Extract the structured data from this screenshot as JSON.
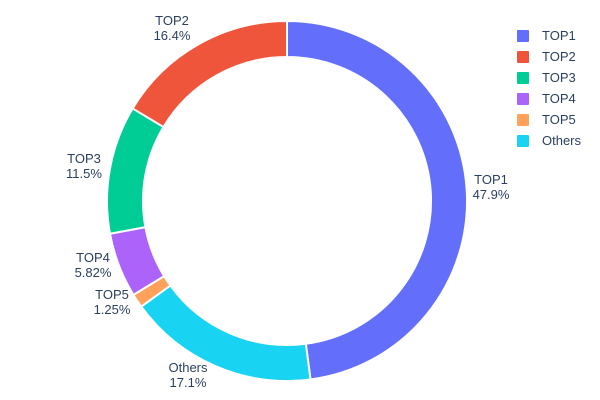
{
  "chart_data": {
    "type": "pie",
    "subtype": "donut",
    "title": "",
    "hole": 0.8,
    "start": "top",
    "direction": "counterclockwise",
    "legend_position": "right",
    "background": "#ffffff",
    "text_color": "#2a3f5f",
    "labels": [
      "TOP1",
      "TOP2",
      "TOP3",
      "TOP4",
      "TOP5",
      "Others"
    ],
    "values": [
      47.9,
      16.4,
      11.5,
      5.82,
      1.25,
      17.1
    ],
    "percent_labels": [
      "47.9%",
      "16.4%",
      "11.5%",
      "5.82%",
      "1.25%",
      "17.1%"
    ],
    "colors": [
      "#636EFA",
      "#EF553B",
      "#00CC96",
      "#AB63FA",
      "#FFA15A",
      "#19D3F3"
    ],
    "slice_border_color": "#ffffff"
  }
}
